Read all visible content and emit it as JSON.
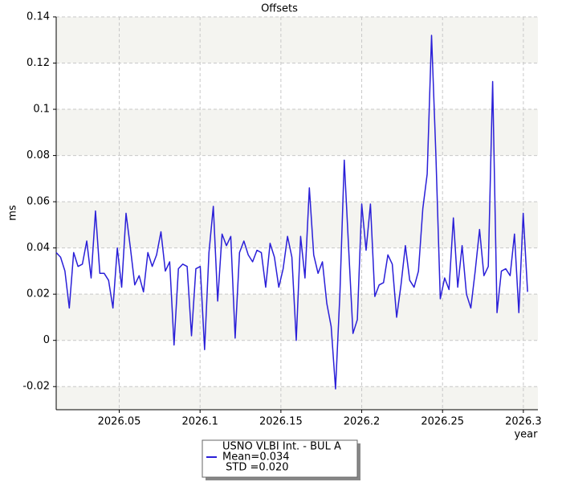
{
  "chart_data": {
    "type": "line",
    "title": "Offsets",
    "x_label": "year",
    "y_label": "ms",
    "xlim": [
      2026.011,
      2026.309
    ],
    "ylim": [
      -0.03,
      0.14
    ],
    "xticks": [
      2026.05,
      2026.1,
      2026.15,
      2026.2,
      2026.25,
      2026.3
    ],
    "yticks": [
      -0.02,
      0,
      0.02,
      0.04,
      0.06,
      0.08,
      0.1,
      0.12,
      0.14
    ],
    "grid": true,
    "x": [
      2026.011,
      2026.0137,
      2026.0164,
      2026.0191,
      2026.0218,
      2026.0245,
      2026.0272,
      2026.0299,
      2026.0326,
      2026.0353,
      2026.038,
      2026.0407,
      2026.0434,
      2026.0461,
      2026.0488,
      2026.0515,
      2026.0542,
      2026.0569,
      2026.0596,
      2026.0623,
      2026.065,
      2026.0677,
      2026.0704,
      2026.0731,
      2026.0758,
      2026.0785,
      2026.0812,
      2026.0839,
      2026.0866,
      2026.0893,
      2026.092,
      2026.0947,
      2026.0974,
      2026.1001,
      2026.1028,
      2026.1055,
      2026.1082,
      2026.1109,
      2026.1136,
      2026.1163,
      2026.119,
      2026.1217,
      2026.1244,
      2026.1271,
      2026.1298,
      2026.1325,
      2026.1352,
      2026.1379,
      2026.1406,
      2026.1433,
      2026.146,
      2026.1487,
      2026.1514,
      2026.1541,
      2026.1568,
      2026.1595,
      2026.1622,
      2026.1649,
      2026.1676,
      2026.1703,
      2026.173,
      2026.1757,
      2026.1784,
      2026.1811,
      2026.1838,
      2026.1865,
      2026.1892,
      2026.1919,
      2026.1946,
      2026.1973,
      2026.2,
      2026.2027,
      2026.2054,
      2026.2081,
      2026.2108,
      2026.2135,
      2026.2162,
      2026.2189,
      2026.2216,
      2026.2243,
      2026.227,
      2026.2297,
      2026.2324,
      2026.2351,
      2026.2378,
      2026.2405,
      2026.2432,
      2026.2459,
      2026.2486,
      2026.2513,
      2026.254,
      2026.2567,
      2026.2594,
      2026.2621,
      2026.2648,
      2026.2675,
      2026.2702,
      2026.2729,
      2026.2756,
      2026.2783,
      2026.281,
      2026.2837,
      2026.2864,
      2026.2891,
      2026.2918,
      2026.2945,
      2026.2972,
      2026.2999,
      2026.3026
    ],
    "series": [
      {
        "name": "USNO VLBI Int. - BUL A",
        "color": "#2a1fd8",
        "values": [
          0.038,
          0.036,
          0.03,
          0.014,
          0.038,
          0.032,
          0.033,
          0.043,
          0.027,
          0.056,
          0.029,
          0.029,
          0.026,
          0.014,
          0.04,
          0.023,
          0.055,
          0.04,
          0.024,
          0.028,
          0.021,
          0.038,
          0.032,
          0.037,
          0.047,
          0.03,
          0.034,
          -0.002,
          0.031,
          0.033,
          0.032,
          0.002,
          0.031,
          0.032,
          -0.004,
          0.038,
          0.058,
          0.017,
          0.046,
          0.041,
          0.045,
          0.001,
          0.038,
          0.043,
          0.037,
          0.034,
          0.039,
          0.038,
          0.023,
          0.042,
          0.036,
          0.023,
          0.031,
          0.045,
          0.036,
          0.0,
          0.045,
          0.027,
          0.066,
          0.037,
          0.029,
          0.034,
          0.016,
          0.006,
          -0.021,
          0.02,
          0.078,
          0.04,
          0.003,
          0.009,
          0.059,
          0.039,
          0.059,
          0.019,
          0.024,
          0.025,
          0.037,
          0.033,
          0.01,
          0.024,
          0.041,
          0.026,
          0.023,
          0.03,
          0.057,
          0.072,
          0.132,
          0.08,
          0.018,
          0.027,
          0.022,
          0.053,
          0.023,
          0.041,
          0.02,
          0.014,
          0.03,
          0.048,
          0.028,
          0.032,
          0.112,
          0.012,
          0.03,
          0.031,
          0.028,
          0.046,
          0.012,
          0.055,
          0.021
        ]
      }
    ],
    "legend_stats": [
      "Mean=0.034",
      " STD =0.020"
    ]
  }
}
